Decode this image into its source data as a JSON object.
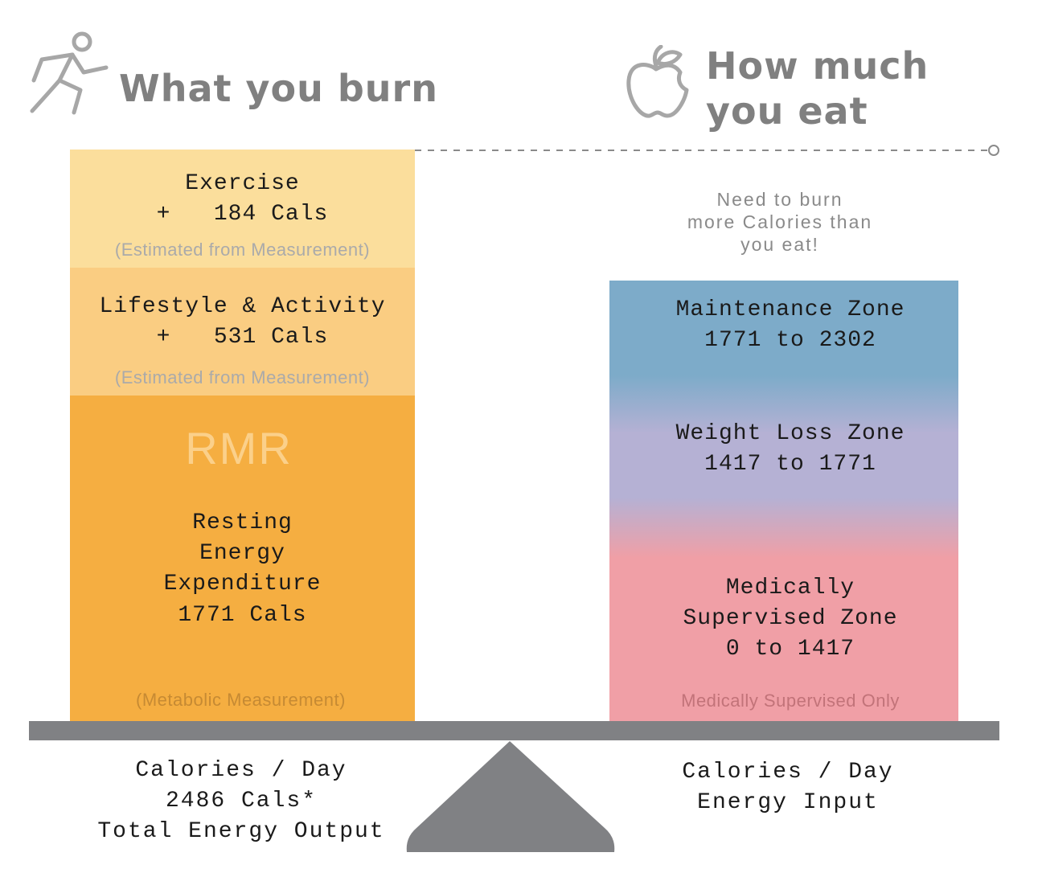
{
  "left": {
    "heading": "What you burn",
    "icon": "running-person-icon",
    "exercise": {
      "title": "Exercise",
      "value_line": "+   184 Cals",
      "note": "(Estimated from Measurement)",
      "color": "#fbde9c"
    },
    "lifestyle": {
      "title": "Lifestyle & Activity",
      "value_line": "+   531 Cals",
      "note": "(Estimated from Measurement)",
      "color": "#facd82"
    },
    "rmr": {
      "label": "RMR",
      "line1": "Resting",
      "line2": "Energy",
      "line3": "Expenditure",
      "line4": "1771 Cals",
      "note": "(Metabolic Measurement)",
      "color": "#f5ae41"
    },
    "bottom": {
      "line1": "Calories / Day",
      "line2": "2486 Cals*",
      "line3": "Total Energy Output"
    }
  },
  "right": {
    "heading_line1": "How much",
    "heading_line2": "you eat",
    "icon": "apple-icon",
    "message_line1": "Need to burn",
    "message_line2": "more Calories than",
    "message_line3": "you eat!",
    "maintenance": {
      "title": "Maintenance Zone",
      "range": "1771 to 2302",
      "color": "#7dabc9"
    },
    "weight_loss": {
      "title": "Weight Loss Zone",
      "range": "1417 to 1771",
      "color": "#b5b1d4"
    },
    "medical": {
      "line1": "Medically",
      "line2": "Supervised Zone",
      "range": "0 to 1417",
      "note": "Medically Supervised Only",
      "color": "#f09fa6"
    },
    "bottom": {
      "line1": "Calories / Day",
      "line2": "Energy Input"
    }
  },
  "scale_color": "#808184"
}
